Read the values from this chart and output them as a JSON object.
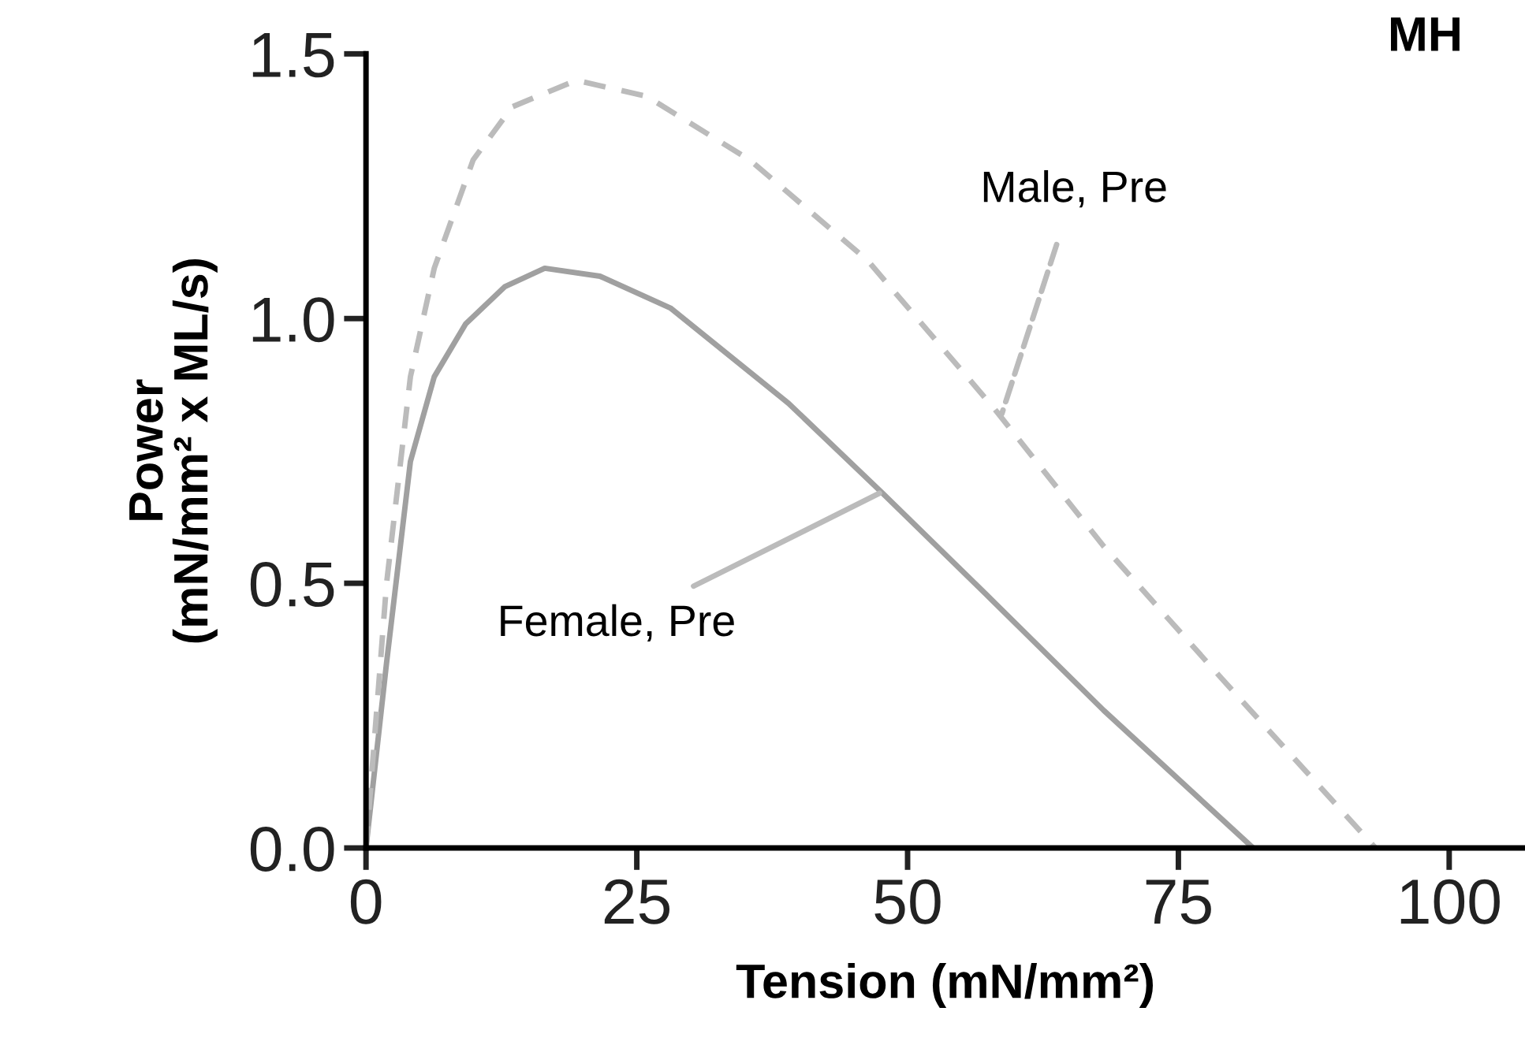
{
  "chart_data": {
    "type": "line",
    "title": "MH",
    "xlabel": "Tension (mN/mm²)",
    "ylabel": "Power\n(mN/mm² x ML/s)",
    "xlim": [
      0,
      107
    ],
    "xticks": [
      0,
      25,
      50,
      75,
      100
    ],
    "ylim": [
      0,
      1.5
    ],
    "yticks": [
      {
        "value": 0,
        "label": "0.0"
      },
      {
        "value": 0.5,
        "label": "0.5"
      },
      {
        "value": 1,
        "label": "1.0"
      },
      {
        "value": 1.5,
        "label": "1.5"
      }
    ],
    "grid": false,
    "legend": false,
    "marker": "none",
    "series": [
      {
        "color": "#a0a0a0",
        "line_style": "solid",
        "x": [
          0,
          1.9,
          4.1,
          6.3,
          9.2,
          12.8,
          16.5,
          21.6,
          28.1,
          39.0,
          47.7,
          57.2,
          68.1,
          81.9
        ],
        "values": [
          0,
          0.35,
          0.73,
          0.89,
          0.99,
          1.06,
          1.095,
          1.08,
          1.02,
          0.84,
          0.67,
          0.48,
          0.26,
          0
        ]
      },
      {
        "color": "#bbbbbb",
        "line_style": "dashed",
        "x": [
          0,
          1.9,
          4.1,
          6.3,
          9.9,
          13.5,
          19.4,
          25.9,
          35.4,
          46.3,
          58.0,
          68.1,
          79.0,
          93.2
        ],
        "values": [
          0,
          0.5,
          0.89,
          1.095,
          1.3,
          1.4,
          1.45,
          1.42,
          1.3,
          1.11,
          0.83,
          0.57,
          0.32,
          0
        ]
      }
    ],
    "annotations": [
      {
        "text": "Male, Pre",
        "x": 58.7,
        "y": 0.82
      },
      {
        "text": "Female, Pre",
        "x": 47.4,
        "y": 0.67
      }
    ]
  }
}
